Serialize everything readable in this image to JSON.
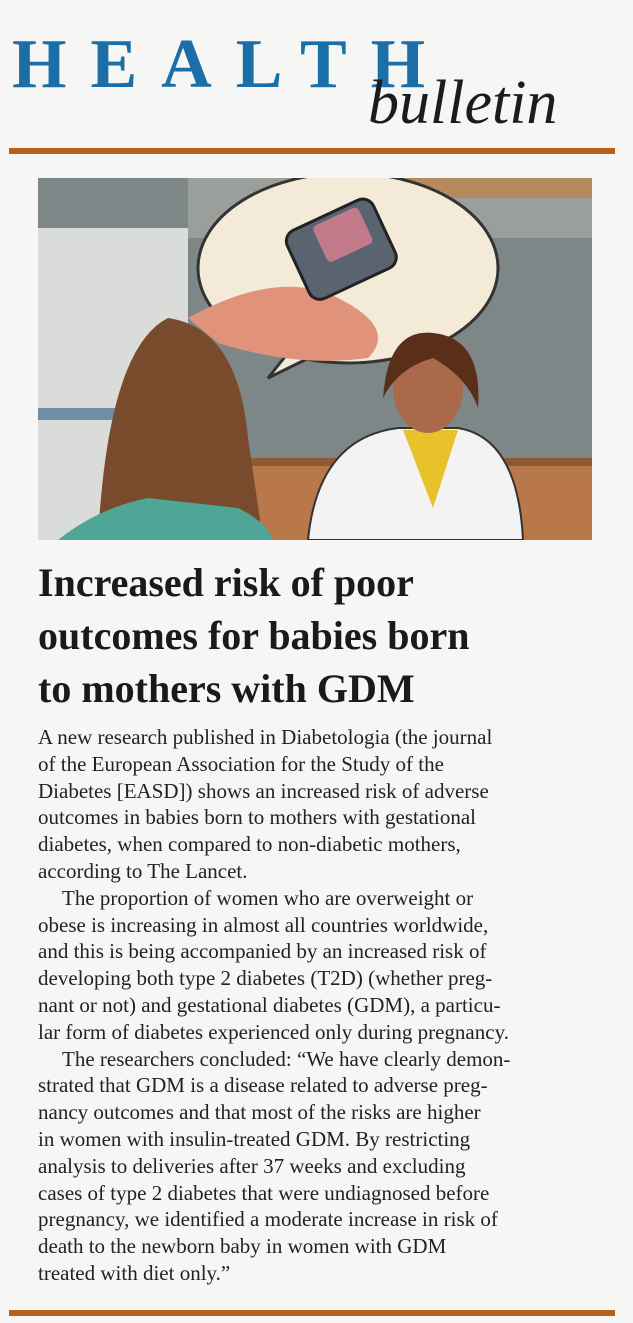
{
  "masthead": {
    "word1": "HEALTH",
    "word2": "bulletin"
  },
  "colors": {
    "masthead_blue": "#1a6fa8",
    "rule": "#b8611a"
  },
  "illustration": "doctor-consultation-glucose-meter",
  "headline_lines": [
    "Increased risk of poor",
    "outcomes for babies born",
    "to mothers with GDM"
  ],
  "paragraphs": [
    [
      "A new research published in Diabetologia (the journal",
      "of the European Association for the Study of the",
      "Diabetes [EASD]) shows an increased risk of adverse",
      "outcomes in babies born to mothers with gestational",
      "diabetes, when compared to non-diabetic mothers,",
      "according to The Lancet."
    ],
    [
      "The proportion of women who are overweight or",
      "obese is increasing in almost all countries worldwide,",
      "and this is being accompanied by an increased risk of",
      "developing both type 2 diabetes (T2D) (whether preg-",
      "nant or not) and gestational diabetes (GDM), a particu-",
      "lar form of diabetes experienced only during pregnancy."
    ],
    [
      "The researchers concluded: “We have clearly demon-",
      "strated that GDM is a disease related to adverse preg-",
      "nancy outcomes and that most of the risks are higher",
      "in women with insulin-treated GDM. By restricting",
      "analysis to deliveries after 37 weeks and excluding",
      "cases of type 2 diabetes that were undiagnosed before",
      "pregnancy, we identified a moderate increase in risk of",
      "death to the newborn baby in women with GDM",
      "treated with diet only.”"
    ]
  ]
}
